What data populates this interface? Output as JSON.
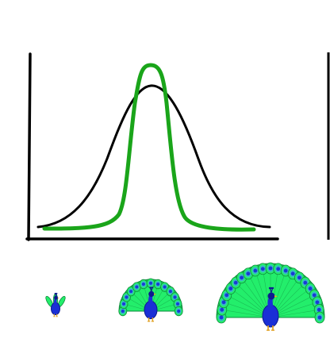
{
  "colors": {
    "axis": "#000000",
    "narrow_curve": "#1aa51a",
    "wide_curve": "#000000",
    "peacock_body": "#1a2fd6",
    "peacock_body_dark": "#0d1a8f",
    "feather_green": "#23ee6b",
    "feather_dark": "#0f8a3c",
    "eye_blue": "#1a3ad6",
    "eye_ring": "#38b8c8",
    "beak": "#f2a81d",
    "legs": "#e0a020"
  },
  "diagram": {
    "curves": [
      {
        "name": "wide-distribution",
        "shape": "bell",
        "spread": "wide"
      },
      {
        "name": "narrow-distribution",
        "shape": "bell",
        "spread": "narrow"
      }
    ],
    "peacocks": [
      {
        "name": "peacock-small",
        "tail": "closed",
        "feathers": 3
      },
      {
        "name": "peacock-medium",
        "tail": "fanned",
        "feathers": 13
      },
      {
        "name": "peacock-large",
        "tail": "fanned",
        "feathers": 21
      }
    ]
  }
}
